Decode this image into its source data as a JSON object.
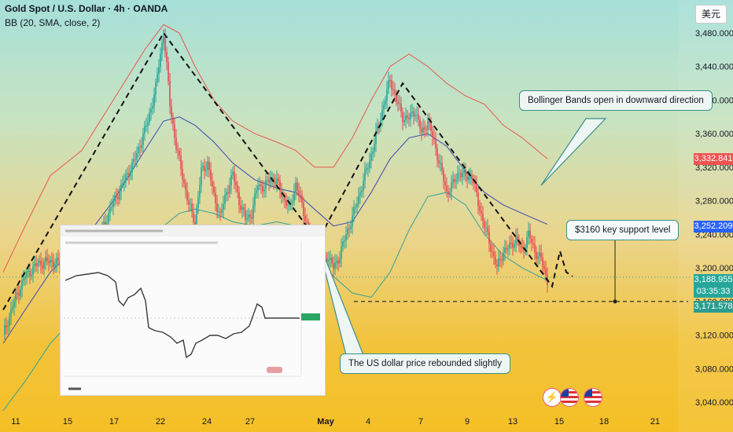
{
  "header": {
    "title": "Gold Spot / U.S. Dollar · 4h · OANDA",
    "indicator": "BB (20, SMA, close, 2)",
    "currency_button": "美元"
  },
  "annotations": {
    "bollinger": "Bollinger Bands open in downward direction",
    "support": "$3160 key support level",
    "usd": "The US dollar price rebounded slightly"
  },
  "price_labels": {
    "upper_band": "3,332.841",
    "middle_band": "3,252.209",
    "last_price": "3,188.955",
    "countdown": "03:35:33",
    "lower_band": "3,171.578"
  },
  "colors": {
    "candle_up": "#22a59a",
    "candle_down": "#e8484f",
    "bb_upper": "#e8574f",
    "bb_basis": "#3c46b4",
    "bb_lower": "#2fa39b",
    "label_upper": "#ef5350",
    "label_middle": "#2962ff",
    "label_price": "#26a69a",
    "label_lower": "#2a9d8f"
  },
  "icons": [
    "flash-event-icon",
    "us-flag-event-icon",
    "us-flag-event-icon"
  ],
  "chart_data": {
    "type": "candlestick",
    "title": "Gold Spot / U.S. Dollar · 4h · OANDA",
    "x_tick_labels": [
      "11",
      "15",
      "17",
      "22",
      "24",
      "27",
      "May",
      "4",
      "7",
      "9",
      "13",
      "15",
      "18",
      "21"
    ],
    "y_tick_labels": [
      "3,480.000",
      "3,440.000",
      "3,400.000",
      "3,360.000",
      "3,320.000",
      "3,280.000",
      "3,240.000",
      "3,200.000",
      "3,160.000",
      "3,120.000",
      "3,080.000",
      "3,040.000"
    ],
    "y_ticks": [
      3480,
      3440,
      3400,
      3360,
      3320,
      3280,
      3240,
      3200,
      3160,
      3120,
      3080,
      3040
    ],
    "ylim": [
      3030,
      3500
    ],
    "close_path": [
      [
        0,
        3120
      ],
      [
        8,
        3165
      ],
      [
        14,
        3190
      ],
      [
        22,
        3205
      ],
      [
        30,
        3208
      ],
      [
        40,
        3203
      ],
      [
        48,
        3200
      ],
      [
        56,
        3215
      ],
      [
        62,
        3240
      ],
      [
        68,
        3270
      ],
      [
        76,
        3300
      ],
      [
        84,
        3330
      ],
      [
        92,
        3375
      ],
      [
        97,
        3415
      ],
      [
        100,
        3455
      ],
      [
        102,
        3480
      ],
      [
        104,
        3440
      ],
      [
        106,
        3395
      ],
      [
        110,
        3345
      ],
      [
        114,
        3310
      ],
      [
        118,
        3275
      ],
      [
        122,
        3255
      ],
      [
        126,
        3315
      ],
      [
        130,
        3325
      ],
      [
        134,
        3285
      ],
      [
        138,
        3262
      ],
      [
        142,
        3290
      ],
      [
        146,
        3312
      ],
      [
        150,
        3280
      ],
      [
        154,
        3258
      ],
      [
        158,
        3265
      ],
      [
        162,
        3300
      ],
      [
        166,
        3295
      ],
      [
        170,
        3308
      ],
      [
        174,
        3302
      ],
      [
        178,
        3285
      ],
      [
        182,
        3270
      ],
      [
        186,
        3300
      ],
      [
        190,
        3275
      ],
      [
        194,
        3245
      ],
      [
        198,
        3225
      ],
      [
        202,
        3205
      ],
      [
        206,
        3215
      ],
      [
        210,
        3200
      ],
      [
        214,
        3215
      ],
      [
        218,
        3240
      ],
      [
        222,
        3260
      ],
      [
        226,
        3285
      ],
      [
        230,
        3310
      ],
      [
        234,
        3335
      ],
      [
        238,
        3365
      ],
      [
        242,
        3395
      ],
      [
        246,
        3425
      ],
      [
        250,
        3400
      ],
      [
        254,
        3380
      ],
      [
        258,
        3378
      ],
      [
        262,
        3388
      ],
      [
        266,
        3360
      ],
      [
        270,
        3375
      ],
      [
        274,
        3350
      ],
      [
        278,
        3320
      ],
      [
        282,
        3290
      ],
      [
        286,
        3300
      ],
      [
        290,
        3315
      ],
      [
        294,
        3308
      ],
      [
        298,
        3310
      ],
      [
        302,
        3278
      ],
      [
        306,
        3250
      ],
      [
        310,
        3225
      ],
      [
        314,
        3200
      ],
      [
        318,
        3220
      ],
      [
        322,
        3225
      ],
      [
        326,
        3235
      ],
      [
        330,
        3220
      ],
      [
        334,
        3240
      ],
      [
        338,
        3220
      ],
      [
        342,
        3210
      ],
      [
        346,
        3185
      ]
    ],
    "bb_upper_path": [
      [
        0,
        3195
      ],
      [
        14,
        3250
      ],
      [
        30,
        3310
      ],
      [
        50,
        3340
      ],
      [
        70,
        3400
      ],
      [
        90,
        3460
      ],
      [
        102,
        3490
      ],
      [
        112,
        3480
      ],
      [
        122,
        3440
      ],
      [
        134,
        3400
      ],
      [
        146,
        3375
      ],
      [
        160,
        3360
      ],
      [
        174,
        3350
      ],
      [
        186,
        3340
      ],
      [
        198,
        3320
      ],
      [
        210,
        3320
      ],
      [
        222,
        3355
      ],
      [
        234,
        3400
      ],
      [
        246,
        3440
      ],
      [
        258,
        3455
      ],
      [
        270,
        3440
      ],
      [
        282,
        3420
      ],
      [
        294,
        3405
      ],
      [
        306,
        3395
      ],
      [
        318,
        3370
      ],
      [
        330,
        3355
      ],
      [
        346,
        3330
      ]
    ],
    "bb_basis_path": [
      [
        0,
        3110
      ],
      [
        14,
        3150
      ],
      [
        30,
        3195
      ],
      [
        50,
        3230
      ],
      [
        70,
        3280
      ],
      [
        90,
        3340
      ],
      [
        102,
        3375
      ],
      [
        112,
        3380
      ],
      [
        122,
        3370
      ],
      [
        134,
        3350
      ],
      [
        146,
        3325
      ],
      [
        160,
        3305
      ],
      [
        174,
        3295
      ],
      [
        186,
        3290
      ],
      [
        198,
        3270
      ],
      [
        210,
        3250
      ],
      [
        222,
        3255
      ],
      [
        234,
        3290
      ],
      [
        246,
        3330
      ],
      [
        258,
        3355
      ],
      [
        270,
        3360
      ],
      [
        282,
        3345
      ],
      [
        294,
        3315
      ],
      [
        306,
        3290
      ],
      [
        318,
        3275
      ],
      [
        330,
        3265
      ],
      [
        346,
        3252
      ]
    ],
    "bb_lower_path": [
      [
        0,
        3030
      ],
      [
        14,
        3065
      ],
      [
        30,
        3110
      ],
      [
        50,
        3150
      ],
      [
        70,
        3185
      ],
      [
        90,
        3225
      ],
      [
        102,
        3250
      ],
      [
        112,
        3265
      ],
      [
        122,
        3270
      ],
      [
        134,
        3265
      ],
      [
        146,
        3255
      ],
      [
        160,
        3250
      ],
      [
        174,
        3255
      ],
      [
        186,
        3250
      ],
      [
        198,
        3215
      ],
      [
        210,
        3190
      ],
      [
        222,
        3170
      ],
      [
        234,
        3165
      ],
      [
        246,
        3195
      ],
      [
        258,
        3245
      ],
      [
        270,
        3285
      ],
      [
        282,
        3290
      ],
      [
        294,
        3275
      ],
      [
        306,
        3240
      ],
      [
        318,
        3215
      ],
      [
        330,
        3200
      ],
      [
        346,
        3185
      ]
    ],
    "pattern_path": [
      [
        0,
        3150
      ],
      [
        102,
        3480
      ],
      [
        200,
        3232
      ],
      [
        254,
        3420
      ],
      [
        349,
        3178
      ],
      [
        354,
        3220
      ],
      [
        358,
        3195
      ],
      [
        362,
        3190
      ]
    ],
    "support_level": 3160,
    "series": [
      {
        "name": "Gold Spot / U.S. Dollar",
        "last": 3188.955
      },
      {
        "name": "BB upper",
        "last": 3332.841
      },
      {
        "name": "BB basis",
        "last": 3252.209
      },
      {
        "name": "BB lower",
        "last": 3171.578
      }
    ]
  }
}
